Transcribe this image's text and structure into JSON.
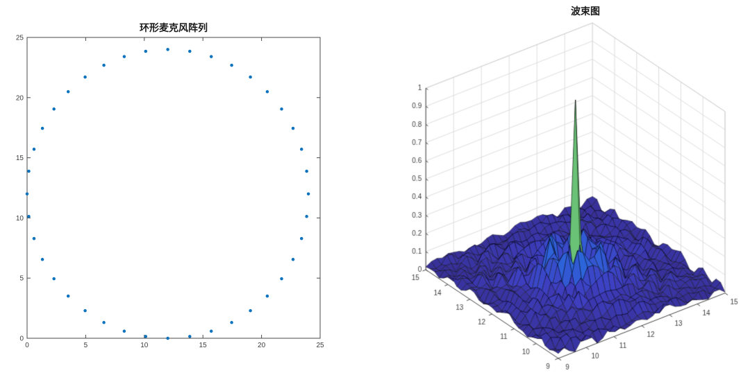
{
  "window": {
    "background": "#ffffff"
  },
  "chart_data": [
    {
      "id": "circular-mic-array",
      "type": "scatter",
      "title": "环形麦克风阵列",
      "xlabel": "",
      "ylabel": "",
      "xlim": [
        0,
        25
      ],
      "ylim": [
        0,
        25
      ],
      "xticks": [
        0,
        5,
        10,
        15,
        20,
        25
      ],
      "yticks": [
        0,
        5,
        10,
        15,
        20,
        25
      ],
      "grid": false,
      "box": true,
      "marker": {
        "shape": "dot",
        "color": "#0b72bd",
        "size": 4.5
      },
      "description": "40 microphones evenly spaced (9 deg) on a circle, center (12,12), radius 12",
      "points": [
        [
          24.0,
          12.0
        ],
        [
          23.85,
          13.88
        ],
        [
          23.41,
          15.71
        ],
        [
          22.69,
          17.45
        ],
        [
          21.71,
          19.05
        ],
        [
          20.49,
          20.49
        ],
        [
          19.05,
          21.71
        ],
        [
          17.45,
          22.69
        ],
        [
          15.71,
          23.41
        ],
        [
          13.88,
          23.85
        ],
        [
          12.0,
          24.0
        ],
        [
          10.12,
          23.85
        ],
        [
          8.29,
          23.41
        ],
        [
          6.55,
          22.69
        ],
        [
          4.95,
          21.71
        ],
        [
          3.51,
          20.49
        ],
        [
          2.29,
          19.05
        ],
        [
          1.31,
          17.45
        ],
        [
          0.59,
          15.71
        ],
        [
          0.15,
          13.88
        ],
        [
          0.0,
          12.0
        ],
        [
          0.15,
          10.12
        ],
        [
          0.59,
          8.29
        ],
        [
          1.31,
          6.55
        ],
        [
          2.29,
          4.95
        ],
        [
          3.51,
          3.51
        ],
        [
          4.95,
          2.29
        ],
        [
          6.55,
          1.31
        ],
        [
          8.29,
          0.59
        ],
        [
          10.12,
          0.15
        ],
        [
          12.0,
          0.0
        ],
        [
          13.88,
          0.15
        ],
        [
          15.71,
          0.59
        ],
        [
          17.45,
          1.31
        ],
        [
          19.05,
          2.29
        ],
        [
          20.49,
          3.51
        ],
        [
          21.71,
          4.95
        ],
        [
          22.69,
          6.55
        ],
        [
          23.41,
          8.29
        ],
        [
          23.85,
          10.12
        ]
      ]
    },
    {
      "id": "beampattern",
      "type": "surface",
      "title": "波束图",
      "xlim": [
        9,
        15
      ],
      "ylim": [
        9,
        15
      ],
      "zlim": [
        0,
        1
      ],
      "xticks": [
        9,
        10,
        11,
        12,
        13,
        14,
        15
      ],
      "yticks": [
        9,
        10,
        11,
        12,
        13,
        14,
        15
      ],
      "zticks": [
        0,
        0.1,
        0.2,
        0.3,
        0.4,
        0.5,
        0.6,
        0.7,
        0.8,
        0.9,
        1
      ],
      "wall_grid": true,
      "view": "MATLAB default 3-D (az -37.5, el 30), orthographic",
      "peak": {
        "x": 12,
        "y": 12,
        "z": 0.93
      },
      "grid_step": 0.2,
      "surface_model": "z(r)=max(0.93*exp(-(r/0.16)^2), |sin(6.5r)/(6.5r)| sidelobes beyond r=0.483) + small ripple noise, r = distance from (12,12); concentric sidelobe rings every ~0.5 units decaying toward edges",
      "colormap_name": "parula",
      "colormap": [
        [
          0.0,
          "#352a87"
        ],
        [
          0.1,
          "#3e3fc2"
        ],
        [
          0.2,
          "#2e62d9"
        ],
        [
          0.3,
          "#1b7fd6"
        ],
        [
          0.4,
          "#0d96c8"
        ],
        [
          0.5,
          "#19a9b0"
        ],
        [
          0.6,
          "#3cbb93"
        ],
        [
          0.7,
          "#73c370"
        ],
        [
          0.8,
          "#aabf5a"
        ],
        [
          0.9,
          "#dcba40"
        ],
        [
          1.0,
          "#f9e721"
        ]
      ],
      "mesh_edge_color": "#000000"
    }
  ],
  "styles": {
    "axis_color": "#4a4a4a",
    "tick_label_color": "#3c3c3c",
    "wall_grid_color": "#dcdcdc",
    "wall_edge_color": "#cfcfcf"
  }
}
